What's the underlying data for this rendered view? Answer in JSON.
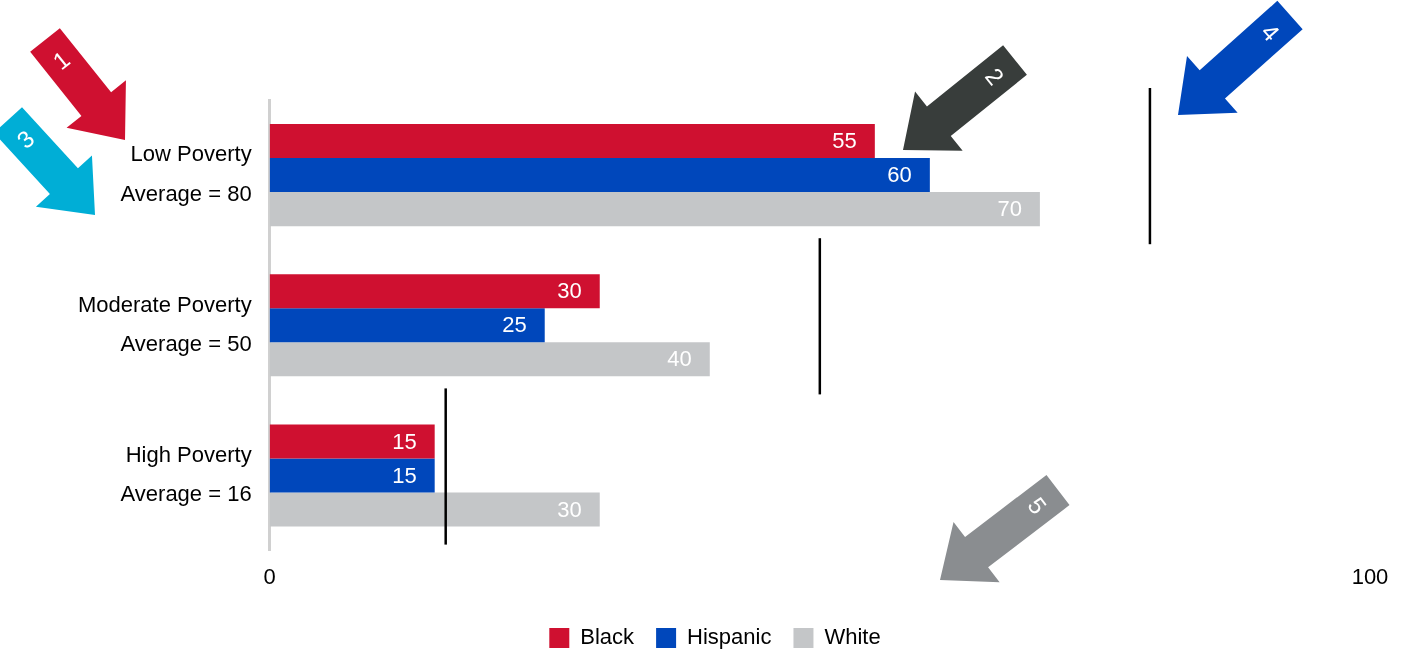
{
  "chart_data": {
    "type": "bar",
    "orientation": "horizontal",
    "categories": [
      "Low Poverty\nAverage = 80",
      "Moderate Poverty\nAverage = 50",
      "High Poverty\nAverage = 16"
    ],
    "series": [
      {
        "name": "Black",
        "color": "#cf1030",
        "values": [
          55,
          30,
          15
        ]
      },
      {
        "name": "Hispanic",
        "color": "#0047bb",
        "values": [
          60,
          25,
          15
        ]
      },
      {
        "name": "White",
        "color": "#c4c6c8",
        "values": [
          70,
          40,
          30
        ]
      }
    ],
    "xlim": [
      0,
      100
    ],
    "xticks": [
      0,
      100
    ],
    "grid": false,
    "legend": "bottom",
    "data_labels": true,
    "ref_lines": [
      {
        "axis": "x",
        "value": 80,
        "color": "#000000"
      },
      {
        "axis": "x",
        "value": 50,
        "color": "#000000"
      },
      {
        "axis": "x",
        "value": 16,
        "color": "#000000"
      }
    ],
    "annotations": [
      "1",
      "2",
      "3",
      "4",
      "5"
    ]
  }
}
